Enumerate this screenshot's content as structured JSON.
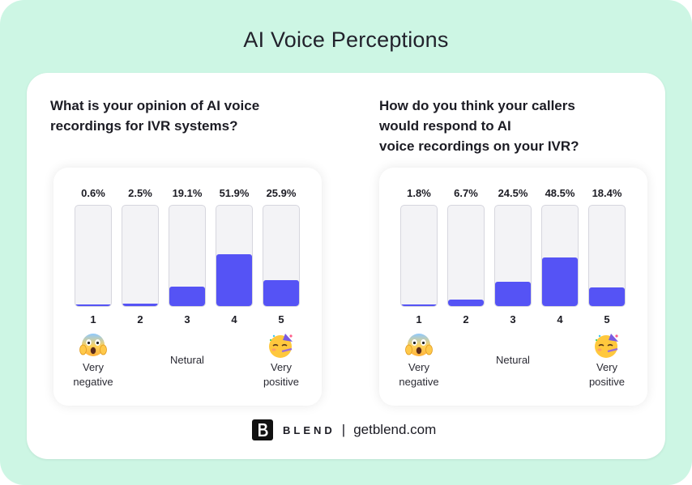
{
  "title": "AI Voice Perceptions",
  "colors": {
    "background": "#cdf6e4",
    "bar_fill": "#5553f5",
    "bar_track": "#f3f3f6"
  },
  "chart_data": [
    {
      "type": "bar",
      "title_lines": [
        "What is your opinion of AI voice",
        "recordings for IVR systems?"
      ],
      "categories": [
        "1",
        "2",
        "3",
        "4",
        "5"
      ],
      "value_labels": [
        "0.6%",
        "2.5%",
        "19.1%",
        "51.9%",
        "25.9%"
      ],
      "values": [
        0.6,
        2.5,
        19.1,
        51.9,
        25.9
      ],
      "ylim": [
        0,
        100
      ],
      "scale_labels": {
        "low": [
          "Very",
          "negative"
        ],
        "mid": "Netural",
        "high": [
          "Very",
          "positive"
        ]
      }
    },
    {
      "type": "bar",
      "title_lines": [
        "How do you think your callers",
        "would respond to AI",
        "voice recordings on your IVR?"
      ],
      "categories": [
        "1",
        "2",
        "3",
        "4",
        "5"
      ],
      "value_labels": [
        "1.8%",
        "6.7%",
        "24.5%",
        "48.5%",
        "18.4%"
      ],
      "values": [
        1.8,
        6.7,
        24.5,
        48.5,
        18.4
      ],
      "ylim": [
        0,
        100
      ],
      "scale_labels": {
        "low": [
          "Very",
          "negative"
        ],
        "mid": "Netural",
        "high": [
          "Very",
          "positive"
        ]
      }
    }
  ],
  "icons": {
    "low": "screaming-face-emoji",
    "high": "partying-face-emoji"
  },
  "footer": {
    "logo_letter": "B",
    "brand": "BLEND",
    "separator": "|",
    "url": "getblend.com"
  }
}
